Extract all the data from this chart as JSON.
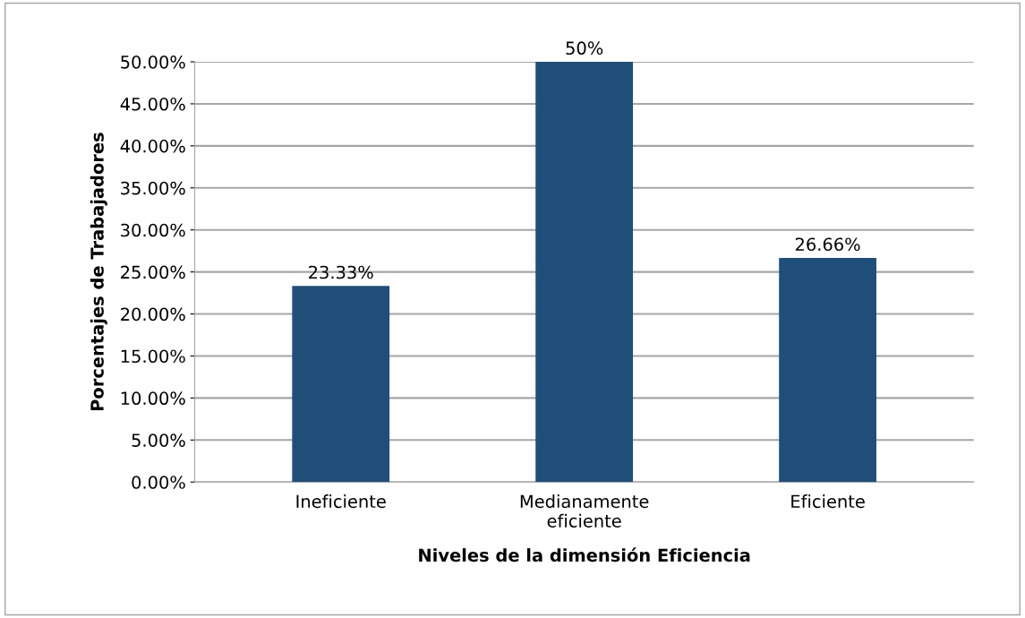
{
  "chart_data": {
    "type": "bar",
    "categories": [
      "Ineficiente",
      "Medianamente\neficiente",
      "Eficiente"
    ],
    "values": [
      23.33,
      50,
      26.66
    ],
    "value_labels": [
      "23.33%",
      "50%",
      "26.66%"
    ],
    "color": "#1f4e79",
    "xlabel": "Niveles de la dimensión Eficiencia",
    "ylabel": "Porcentajes de Trabajadores",
    "ylim": [
      0,
      50
    ],
    "yticks": [
      {
        "value": 0,
        "label": "0.00%"
      },
      {
        "value": 5,
        "label": "5.00%"
      },
      {
        "value": 10,
        "label": "10.00%"
      },
      {
        "value": 15,
        "label": "15.00%"
      },
      {
        "value": 20,
        "label": "20.00%"
      },
      {
        "value": 25,
        "label": "25.00%"
      },
      {
        "value": 30,
        "label": "30.00%"
      },
      {
        "value": 35,
        "label": "35.00%"
      },
      {
        "value": 40,
        "label": "40.00%"
      },
      {
        "value": 45,
        "label": "45.00%"
      },
      {
        "value": 50,
        "label": "50.00%"
      }
    ],
    "grid": "y",
    "legend": false
  }
}
